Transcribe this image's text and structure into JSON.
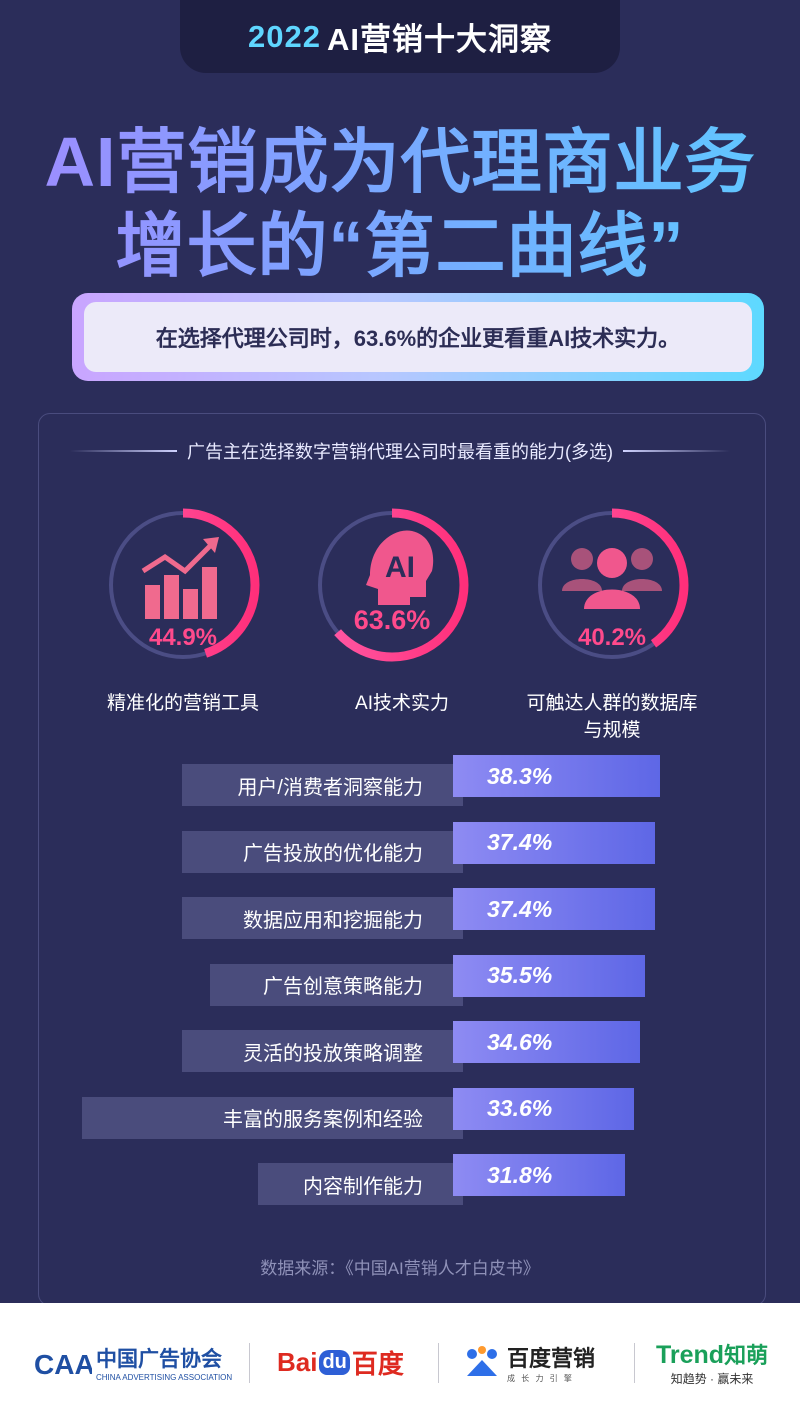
{
  "header": {
    "year": "2022",
    "tab_title": "AI营销十大洞察"
  },
  "headline": {
    "line1": "AI营销成为代理商业务",
    "line2": "增长的“第二曲线”"
  },
  "banner": {
    "text": "在选择代理公司时，63.6%的企业更看重AI技术实力。"
  },
  "colors": {
    "accent_pink": "#ff3f88",
    "accent_cyan": "#5dd9ff",
    "bar_purple": "#7b7df0",
    "background": "#2b2d5a"
  },
  "chart_data": [
    {
      "type": "pie",
      "title": "广告主在选择数字营销代理公司时最看重的能力(多选)",
      "top3": [
        {
          "label": "精准化的营销工具",
          "value": 44.9,
          "display": "44.9%",
          "icon": "bar-chart-trend-icon"
        },
        {
          "label": "AI技术实力",
          "value": 63.6,
          "display": "63.6%",
          "icon": "ai-head-icon"
        },
        {
          "label": "可触达人群的数据库\n与规模",
          "label_line1": "可触达人群的数据库",
          "label_line2": "与规模",
          "value": 40.2,
          "display": "40.2%",
          "icon": "people-group-icon"
        }
      ]
    },
    {
      "type": "bar",
      "orientation": "horizontal",
      "categories": [
        "用户/消费者洞察能力",
        "广告投放的优化能力",
        "数据应用和挖掘能力",
        "广告创意策略能力",
        "灵活的投放策略调整",
        "丰富的服务案例和经验",
        "内容制作能力"
      ],
      "values": [
        38.3,
        37.4,
        37.4,
        35.5,
        34.6,
        33.6,
        31.8
      ],
      "labels": [
        "38.3%",
        "37.4%",
        "37.4%",
        "35.5%",
        "34.6%",
        "33.6%",
        "31.8%"
      ]
    }
  ],
  "source": "数据来源：《中国AI营销人才白皮书》",
  "footer": {
    "logo1_mark": "CAA",
    "logo1_cn": "中国广告协会",
    "logo1_en": "CHINA ADVERTISING ASSOCIATION",
    "logo2_bai": "Bai",
    "logo2_du": "du",
    "logo2_cn": "百度",
    "logo3_cn": "百度营销",
    "logo3_sub": "成 长 力 引 擎",
    "logo4_en": "Trend",
    "logo4_cn": "知萌",
    "logo4_sub": "知趋势 · 赢未来"
  }
}
